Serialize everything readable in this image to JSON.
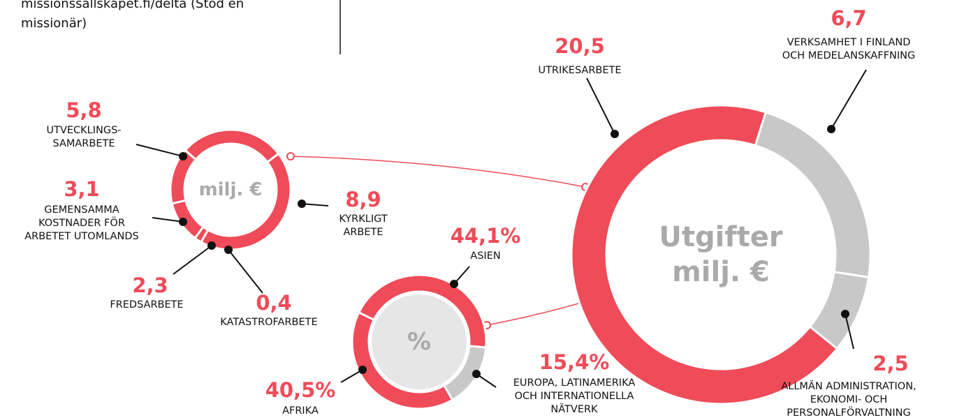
{
  "note": "missionssallskapet.fi/delta (Stöd en\nmissionär)",
  "chart_data": [
    {
      "type": "donut",
      "center_label": "Utgifter\nmilj. €",
      "categories": [
        "UTRIKESARBETE",
        "VERKSAMHET I FINLAND\nOCH MEDELANSKAFFNING",
        "ALLMÄN ADMINISTRATION,\nEKONOMI- OCH\nPERSONALFÖRVALTNING"
      ],
      "values": [
        20.5,
        6.7,
        2.5
      ],
      "value_labels": [
        "20,5",
        "6,7",
        "2,5"
      ],
      "colors": [
        "#ef4b58",
        "#c8c8c8",
        "#c8c8c8"
      ]
    },
    {
      "type": "donut",
      "center_label": "milj. €",
      "categories": [
        "KYRKLIGT\nARBETE",
        "KATASTROFARBETE",
        "FREDSARBETE",
        "GEMENSAMMA\nKOSTNADER FÖR\nARBETET UTOMLANDS",
        "UTVECKLINGS-\nSAMARBETE"
      ],
      "values": [
        8.9,
        0.4,
        2.3,
        3.1,
        5.8
      ],
      "value_labels": [
        "8,9",
        "0,4",
        "2,3",
        "3,1",
        "5,8"
      ],
      "colors": [
        "#ef4b58",
        "#ef4b58",
        "#ef4b58",
        "#ef4b58",
        "#ef4b58"
      ]
    },
    {
      "type": "donut",
      "center_label": "%",
      "categories": [
        "ASIEN",
        "EUROPA, LATINAMERIKA\nOCH INTERNATIONELLA\nNÄTVERK",
        "AFRIKA"
      ],
      "values": [
        44.1,
        15.4,
        40.5
      ],
      "value_labels": [
        "44,1%",
        "15,4%",
        "40,5%"
      ],
      "colors": [
        "#ef4b58",
        "#c8c8c8",
        "#ef4b58"
      ]
    }
  ]
}
